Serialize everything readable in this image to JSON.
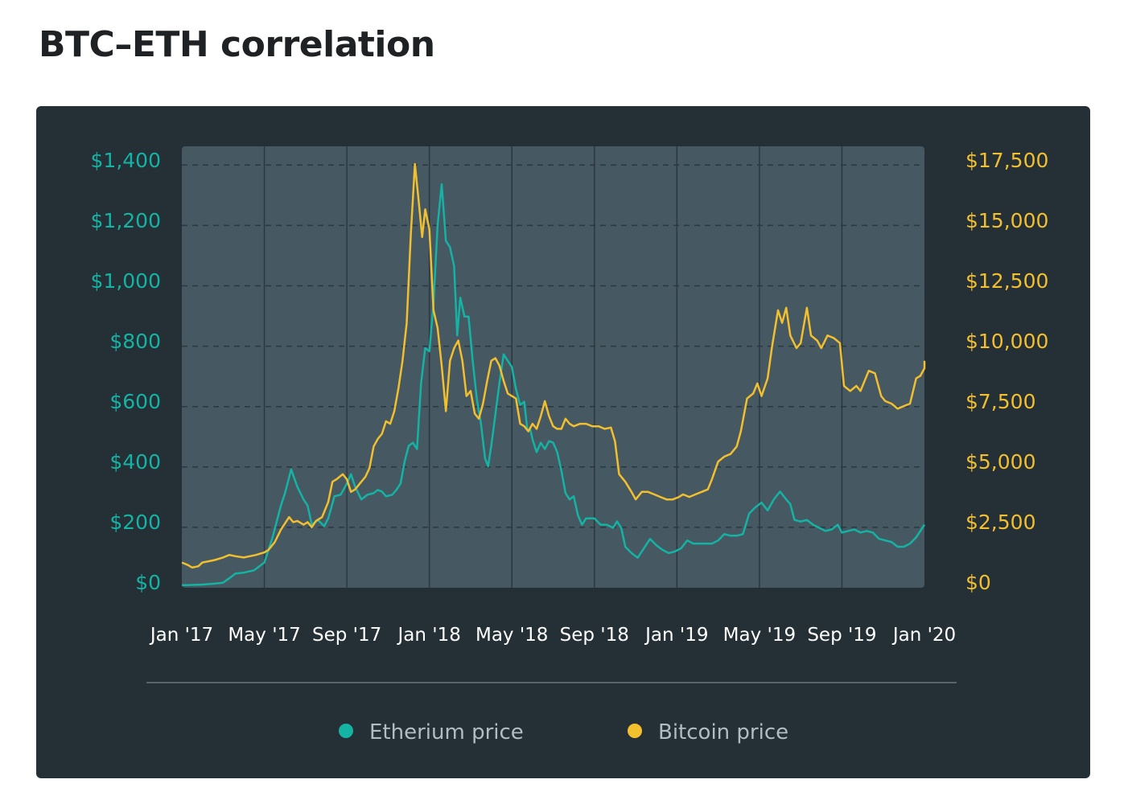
{
  "title": "BTC–ETH correlation",
  "colors": {
    "eth": "#14b3a3",
    "btc": "#f2bf2f",
    "card_bg": "#252f36",
    "plot_bg": "#465862",
    "grid": "#2b3840",
    "divider": "#8d989f"
  },
  "chart_data": {
    "type": "line",
    "title": "BTC–ETH correlation",
    "x_unit": "months since Jan 2017",
    "x_range": [
      0,
      36
    ],
    "x_ticks": [
      {
        "x": 0,
        "label": "Jan '17"
      },
      {
        "x": 4,
        "label": "May '17"
      },
      {
        "x": 8,
        "label": "Sep '17"
      },
      {
        "x": 12,
        "label": "Jan '18"
      },
      {
        "x": 16,
        "label": "May '18"
      },
      {
        "x": 20,
        "label": "Sep '18"
      },
      {
        "x": 24,
        "label": "Jan '19"
      },
      {
        "x": 28,
        "label": "May '19"
      },
      {
        "x": 32,
        "label": "Sep '19"
      },
      {
        "x": 36,
        "label": "Jan '20"
      }
    ],
    "y_left": {
      "range": [
        0,
        1400
      ],
      "ticks": [
        0,
        200,
        400,
        600,
        800,
        1000,
        1200,
        1400
      ],
      "labels": [
        "$0",
        "$200",
        "$400",
        "$600",
        "$800",
        "$1,000",
        "$1,200",
        "$1,400"
      ]
    },
    "y_right": {
      "range": [
        0,
        17500
      ],
      "ticks": [
        0,
        2500,
        5000,
        7500,
        10000,
        12500,
        15000,
        17500
      ],
      "labels": [
        "$0",
        "$2,500",
        "$5,000",
        "$7,500",
        "$10,000",
        "$12,500",
        "$15,000",
        "$17,500"
      ]
    },
    "grid": "horizontal dashed and vertical at x ticks",
    "legend_position": "bottom-center",
    "series": [
      {
        "name": "Etherium price",
        "axis": "left",
        "points": [
          [
            0,
            8
          ],
          [
            1,
            10
          ],
          [
            1.6,
            13
          ],
          [
            2,
            16
          ],
          [
            2.3,
            30
          ],
          [
            2.6,
            45
          ],
          [
            3,
            48
          ],
          [
            3.5,
            55
          ],
          [
            4,
            80
          ],
          [
            4.4,
            160
          ],
          [
            4.8,
            260
          ],
          [
            5.0,
            300
          ],
          [
            5.3,
            375
          ],
          [
            5.6,
            320
          ],
          [
            5.9,
            280
          ],
          [
            6.1,
            260
          ],
          [
            6.3,
            200
          ],
          [
            6.6,
            215
          ],
          [
            6.9,
            195
          ],
          [
            7.1,
            220
          ],
          [
            7.4,
            290
          ],
          [
            7.7,
            295
          ],
          [
            8.0,
            330
          ],
          [
            8.2,
            360
          ],
          [
            8.4,
            320
          ],
          [
            8.7,
            280
          ],
          [
            9.0,
            295
          ],
          [
            9.3,
            300
          ],
          [
            9.5,
            310
          ],
          [
            9.7,
            305
          ],
          [
            9.9,
            290
          ],
          [
            10.2,
            295
          ],
          [
            10.4,
            310
          ],
          [
            10.6,
            330
          ],
          [
            10.8,
            400
          ],
          [
            11.0,
            450
          ],
          [
            11.2,
            460
          ],
          [
            11.4,
            440
          ],
          [
            11.6,
            650
          ],
          [
            11.8,
            760
          ],
          [
            12.0,
            750
          ],
          [
            12.2,
            900
          ],
          [
            12.4,
            1150
          ],
          [
            12.6,
            1280
          ],
          [
            12.8,
            1100
          ],
          [
            13.0,
            1080
          ],
          [
            13.2,
            1020
          ],
          [
            13.35,
            800
          ],
          [
            13.5,
            920
          ],
          [
            13.7,
            860
          ],
          [
            13.9,
            860
          ],
          [
            14.1,
            720
          ],
          [
            14.3,
            600
          ],
          [
            14.5,
            520
          ],
          [
            14.7,
            410
          ],
          [
            14.85,
            385
          ],
          [
            15.0,
            450
          ],
          [
            15.2,
            550
          ],
          [
            15.4,
            650
          ],
          [
            15.6,
            740
          ],
          [
            15.8,
            720
          ],
          [
            16.0,
            700
          ],
          [
            16.2,
            630
          ],
          [
            16.4,
            580
          ],
          [
            16.6,
            590
          ],
          [
            16.75,
            500
          ],
          [
            16.9,
            500
          ],
          [
            17.0,
            470
          ],
          [
            17.2,
            430
          ],
          [
            17.4,
            460
          ],
          [
            17.6,
            440
          ],
          [
            17.8,
            465
          ],
          [
            18.0,
            460
          ],
          [
            18.2,
            430
          ],
          [
            18.4,
            370
          ],
          [
            18.6,
            300
          ],
          [
            18.8,
            280
          ],
          [
            19.0,
            290
          ],
          [
            19.2,
            230
          ],
          [
            19.4,
            200
          ],
          [
            19.6,
            220
          ],
          [
            19.8,
            220
          ],
          [
            20.0,
            220
          ],
          [
            20.3,
            200
          ],
          [
            20.6,
            200
          ],
          [
            20.9,
            190
          ],
          [
            21.1,
            210
          ],
          [
            21.3,
            190
          ],
          [
            21.5,
            130
          ],
          [
            21.8,
            110
          ],
          [
            22.1,
            95
          ],
          [
            22.4,
            125
          ],
          [
            22.7,
            155
          ],
          [
            23.0,
            135
          ],
          [
            23.3,
            120
          ],
          [
            23.6,
            110
          ],
          [
            23.9,
            115
          ],
          [
            24.2,
            125
          ],
          [
            24.5,
            150
          ],
          [
            24.8,
            140
          ],
          [
            25.1,
            140
          ],
          [
            25.4,
            140
          ],
          [
            25.7,
            140
          ],
          [
            26.0,
            150
          ],
          [
            26.3,
            170
          ],
          [
            26.6,
            165
          ],
          [
            26.9,
            165
          ],
          [
            27.2,
            170
          ],
          [
            27.5,
            235
          ],
          [
            27.8,
            255
          ],
          [
            28.1,
            270
          ],
          [
            28.4,
            245
          ],
          [
            28.7,
            280
          ],
          [
            29.0,
            305
          ],
          [
            29.3,
            280
          ],
          [
            29.5,
            265
          ],
          [
            29.7,
            215
          ],
          [
            30.0,
            210
          ],
          [
            30.3,
            215
          ],
          [
            30.6,
            200
          ],
          [
            30.9,
            190
          ],
          [
            31.2,
            180
          ],
          [
            31.5,
            185
          ],
          [
            31.8,
            200
          ],
          [
            32.0,
            175
          ],
          [
            32.3,
            180
          ],
          [
            32.6,
            185
          ],
          [
            32.9,
            175
          ],
          [
            33.2,
            180
          ],
          [
            33.5,
            175
          ],
          [
            33.8,
            155
          ],
          [
            34.1,
            150
          ],
          [
            34.4,
            145
          ],
          [
            34.7,
            130
          ],
          [
            35.0,
            130
          ],
          [
            35.3,
            140
          ],
          [
            35.6,
            160
          ],
          [
            35.8,
            180
          ],
          [
            36.0,
            200
          ]
        ]
      },
      {
        "name": "Bitcoin price",
        "axis": "right",
        "points": [
          [
            0,
            1000
          ],
          [
            0.3,
            900
          ],
          [
            0.5,
            800
          ],
          [
            0.8,
            850
          ],
          [
            1.0,
            1000
          ],
          [
            1.3,
            1050
          ],
          [
            1.6,
            1100
          ],
          [
            2.0,
            1200
          ],
          [
            2.3,
            1300
          ],
          [
            2.6,
            1250
          ],
          [
            3.0,
            1200
          ],
          [
            3.3,
            1250
          ],
          [
            3.6,
            1300
          ],
          [
            4.0,
            1400
          ],
          [
            4.2,
            1500
          ],
          [
            4.5,
            1800
          ],
          [
            4.8,
            2300
          ],
          [
            5.0,
            2550
          ],
          [
            5.2,
            2800
          ],
          [
            5.4,
            2600
          ],
          [
            5.6,
            2650
          ],
          [
            5.9,
            2500
          ],
          [
            6.1,
            2600
          ],
          [
            6.3,
            2400
          ],
          [
            6.5,
            2650
          ],
          [
            6.8,
            2800
          ],
          [
            7.1,
            3400
          ],
          [
            7.3,
            4200
          ],
          [
            7.5,
            4300
          ],
          [
            7.8,
            4500
          ],
          [
            8.0,
            4300
          ],
          [
            8.2,
            3800
          ],
          [
            8.4,
            3900
          ],
          [
            8.7,
            4200
          ],
          [
            8.9,
            4400
          ],
          [
            9.1,
            4750
          ],
          [
            9.3,
            5600
          ],
          [
            9.5,
            5900
          ],
          [
            9.7,
            6100
          ],
          [
            9.9,
            6600
          ],
          [
            10.1,
            6500
          ],
          [
            10.3,
            7000
          ],
          [
            10.5,
            7900
          ],
          [
            10.7,
            9000
          ],
          [
            10.9,
            10500
          ],
          [
            11.1,
            14000
          ],
          [
            11.3,
            16800
          ],
          [
            11.5,
            15200
          ],
          [
            11.65,
            13900
          ],
          [
            11.8,
            15000
          ],
          [
            12.0,
            14200
          ],
          [
            12.2,
            11000
          ],
          [
            12.4,
            10300
          ],
          [
            12.6,
            8800
          ],
          [
            12.8,
            7000
          ],
          [
            13.0,
            9000
          ],
          [
            13.2,
            9500
          ],
          [
            13.4,
            9800
          ],
          [
            13.6,
            9000
          ],
          [
            13.8,
            7600
          ],
          [
            14.0,
            7800
          ],
          [
            14.2,
            6900
          ],
          [
            14.4,
            6700
          ],
          [
            14.6,
            7300
          ],
          [
            14.8,
            8200
          ],
          [
            15.0,
            9000
          ],
          [
            15.2,
            9100
          ],
          [
            15.4,
            8800
          ],
          [
            15.6,
            8200
          ],
          [
            15.8,
            7700
          ],
          [
            16.0,
            7600
          ],
          [
            16.2,
            7500
          ],
          [
            16.4,
            6500
          ],
          [
            16.6,
            6400
          ],
          [
            16.8,
            6200
          ],
          [
            17.0,
            6500
          ],
          [
            17.2,
            6300
          ],
          [
            17.4,
            6800
          ],
          [
            17.6,
            7400
          ],
          [
            17.8,
            6800
          ],
          [
            18.0,
            6400
          ],
          [
            18.2,
            6300
          ],
          [
            18.4,
            6300
          ],
          [
            18.6,
            6700
          ],
          [
            18.8,
            6500
          ],
          [
            19.0,
            6400
          ],
          [
            19.3,
            6500
          ],
          [
            19.6,
            6500
          ],
          [
            19.9,
            6400
          ],
          [
            20.2,
            6400
          ],
          [
            20.5,
            6300
          ],
          [
            20.8,
            6350
          ],
          [
            21.0,
            5800
          ],
          [
            21.2,
            4500
          ],
          [
            21.5,
            4200
          ],
          [
            21.8,
            3800
          ],
          [
            22.0,
            3500
          ],
          [
            22.3,
            3800
          ],
          [
            22.6,
            3800
          ],
          [
            22.9,
            3700
          ],
          [
            23.2,
            3600
          ],
          [
            23.5,
            3500
          ],
          [
            23.8,
            3500
          ],
          [
            24.1,
            3600
          ],
          [
            24.3,
            3700
          ],
          [
            24.6,
            3600
          ],
          [
            24.9,
            3700
          ],
          [
            25.2,
            3800
          ],
          [
            25.5,
            3900
          ],
          [
            25.7,
            4300
          ],
          [
            26.0,
            5000
          ],
          [
            26.3,
            5200
          ],
          [
            26.6,
            5300
          ],
          [
            26.9,
            5600
          ],
          [
            27.1,
            6200
          ],
          [
            27.4,
            7500
          ],
          [
            27.7,
            7700
          ],
          [
            27.9,
            8100
          ],
          [
            28.1,
            7600
          ],
          [
            28.4,
            8300
          ],
          [
            28.6,
            9500
          ],
          [
            28.9,
            11000
          ],
          [
            29.1,
            10500
          ],
          [
            29.3,
            11100
          ],
          [
            29.5,
            10000
          ],
          [
            29.8,
            9500
          ],
          [
            30.0,
            9700
          ],
          [
            30.3,
            11100
          ],
          [
            30.5,
            10000
          ],
          [
            30.8,
            9800
          ],
          [
            31.0,
            9500
          ],
          [
            31.3,
            10000
          ],
          [
            31.6,
            9900
          ],
          [
            31.9,
            9700
          ],
          [
            32.1,
            8000
          ],
          [
            32.4,
            7800
          ],
          [
            32.7,
            8000
          ],
          [
            32.9,
            7800
          ],
          [
            33.1,
            8200
          ],
          [
            33.3,
            8600
          ],
          [
            33.6,
            8500
          ],
          [
            33.9,
            7600
          ],
          [
            34.1,
            7400
          ],
          [
            34.4,
            7300
          ],
          [
            34.7,
            7100
          ],
          [
            35.0,
            7200
          ],
          [
            35.3,
            7300
          ],
          [
            35.6,
            8300
          ],
          [
            35.8,
            8400
          ],
          [
            36.0,
            8700
          ],
          [
            36.3,
            9000
          ]
        ]
      }
    ]
  }
}
